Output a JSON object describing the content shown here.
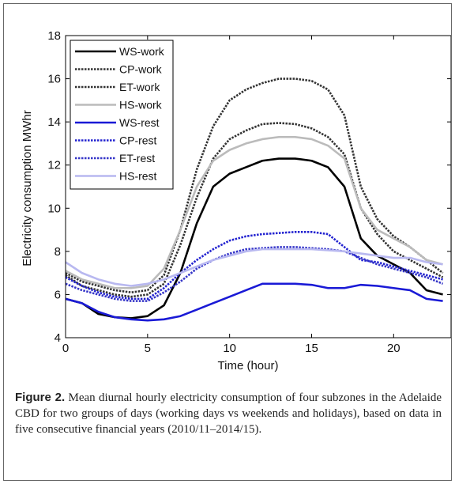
{
  "chart_data": {
    "type": "line",
    "xlabel": "Time (hour)",
    "ylabel": "Electricity consumption MWhr",
    "x": [
      0,
      1,
      2,
      3,
      4,
      5,
      6,
      7,
      8,
      9,
      10,
      11,
      12,
      13,
      14,
      15,
      16,
      17,
      18,
      19,
      20,
      21,
      22,
      23
    ],
    "xlim": [
      0,
      23.5
    ],
    "xticks": [
      0,
      5,
      10,
      15,
      20
    ],
    "ylim": [
      4,
      18
    ],
    "yticks": [
      4,
      6,
      8,
      10,
      12,
      14,
      16,
      18
    ],
    "grid": false,
    "legend": "upper left",
    "series": [
      {
        "name": "WS-work",
        "color": "#000000",
        "style": "solid",
        "values": [
          5.8,
          5.6,
          5.1,
          4.95,
          4.9,
          5.0,
          5.5,
          7.0,
          9.3,
          11.0,
          11.6,
          11.9,
          12.2,
          12.3,
          12.3,
          12.2,
          11.9,
          11.0,
          8.6,
          7.8,
          7.4,
          7.0,
          6.2,
          6.0
        ]
      },
      {
        "name": "CP-work",
        "color": "#333333",
        "style": "dotted",
        "values": [
          7.0,
          6.6,
          6.4,
          6.2,
          6.1,
          6.2,
          6.9,
          9.0,
          11.8,
          13.8,
          15.0,
          15.5,
          15.8,
          16.0,
          16.0,
          15.9,
          15.5,
          14.3,
          11.0,
          9.5,
          8.7,
          8.2,
          7.6,
          7.0
        ]
      },
      {
        "name": "ET-work",
        "color": "#333333",
        "style": "dotted",
        "values": [
          6.9,
          6.4,
          6.2,
          6.0,
          5.9,
          6.0,
          6.5,
          8.3,
          10.5,
          12.3,
          13.2,
          13.6,
          13.9,
          13.95,
          13.9,
          13.7,
          13.3,
          12.5,
          10.0,
          8.8,
          8.0,
          7.6,
          7.2,
          6.8
        ]
      },
      {
        "name": "HS-work",
        "color": "#bbbbbb",
        "style": "solid",
        "values": [
          7.1,
          6.7,
          6.5,
          6.3,
          6.3,
          6.4,
          7.2,
          9.0,
          11.0,
          12.2,
          12.7,
          13.0,
          13.2,
          13.3,
          13.3,
          13.2,
          12.9,
          12.3,
          10.0,
          9.0,
          8.6,
          8.2,
          7.6,
          7.4
        ]
      },
      {
        "name": "WS-rest",
        "color": "#1a1ad6",
        "style": "solid",
        "values": [
          5.8,
          5.6,
          5.2,
          4.95,
          4.85,
          4.8,
          4.85,
          5.0,
          5.3,
          5.6,
          5.9,
          6.2,
          6.5,
          6.5,
          6.5,
          6.45,
          6.3,
          6.3,
          6.45,
          6.4,
          6.3,
          6.2,
          5.8,
          5.7
        ]
      },
      {
        "name": "CP-rest",
        "color": "#2323d0",
        "style": "dotted",
        "values": [
          6.8,
          6.4,
          6.1,
          5.9,
          5.8,
          5.8,
          6.3,
          7.0,
          7.6,
          8.1,
          8.5,
          8.7,
          8.8,
          8.85,
          8.9,
          8.9,
          8.8,
          8.2,
          7.6,
          7.5,
          7.3,
          7.1,
          6.9,
          6.7
        ]
      },
      {
        "name": "ET-rest",
        "color": "#3535c8",
        "style": "dotted",
        "values": [
          6.5,
          6.2,
          6.0,
          5.8,
          5.7,
          5.7,
          6.1,
          6.6,
          7.2,
          7.6,
          7.9,
          8.1,
          8.15,
          8.2,
          8.2,
          8.15,
          8.1,
          8.0,
          7.7,
          7.4,
          7.2,
          7.0,
          6.8,
          6.5
        ]
      },
      {
        "name": "HS-rest",
        "color": "#b8b8f0",
        "style": "solid",
        "values": [
          7.5,
          7.0,
          6.7,
          6.5,
          6.4,
          6.5,
          6.7,
          7.0,
          7.3,
          7.6,
          7.8,
          8.0,
          8.1,
          8.1,
          8.1,
          8.1,
          8.05,
          8.0,
          7.9,
          7.8,
          7.7,
          7.7,
          7.5,
          7.4
        ]
      }
    ]
  },
  "caption": {
    "label": "Figure 2.",
    "text": "Mean diurnal hourly electricity consumption of four subzones in the Adelaide CBD for two groups of days (working days vs weekends and holidays), based on data in five consecutive financial years (2010/11–2014/15)."
  }
}
